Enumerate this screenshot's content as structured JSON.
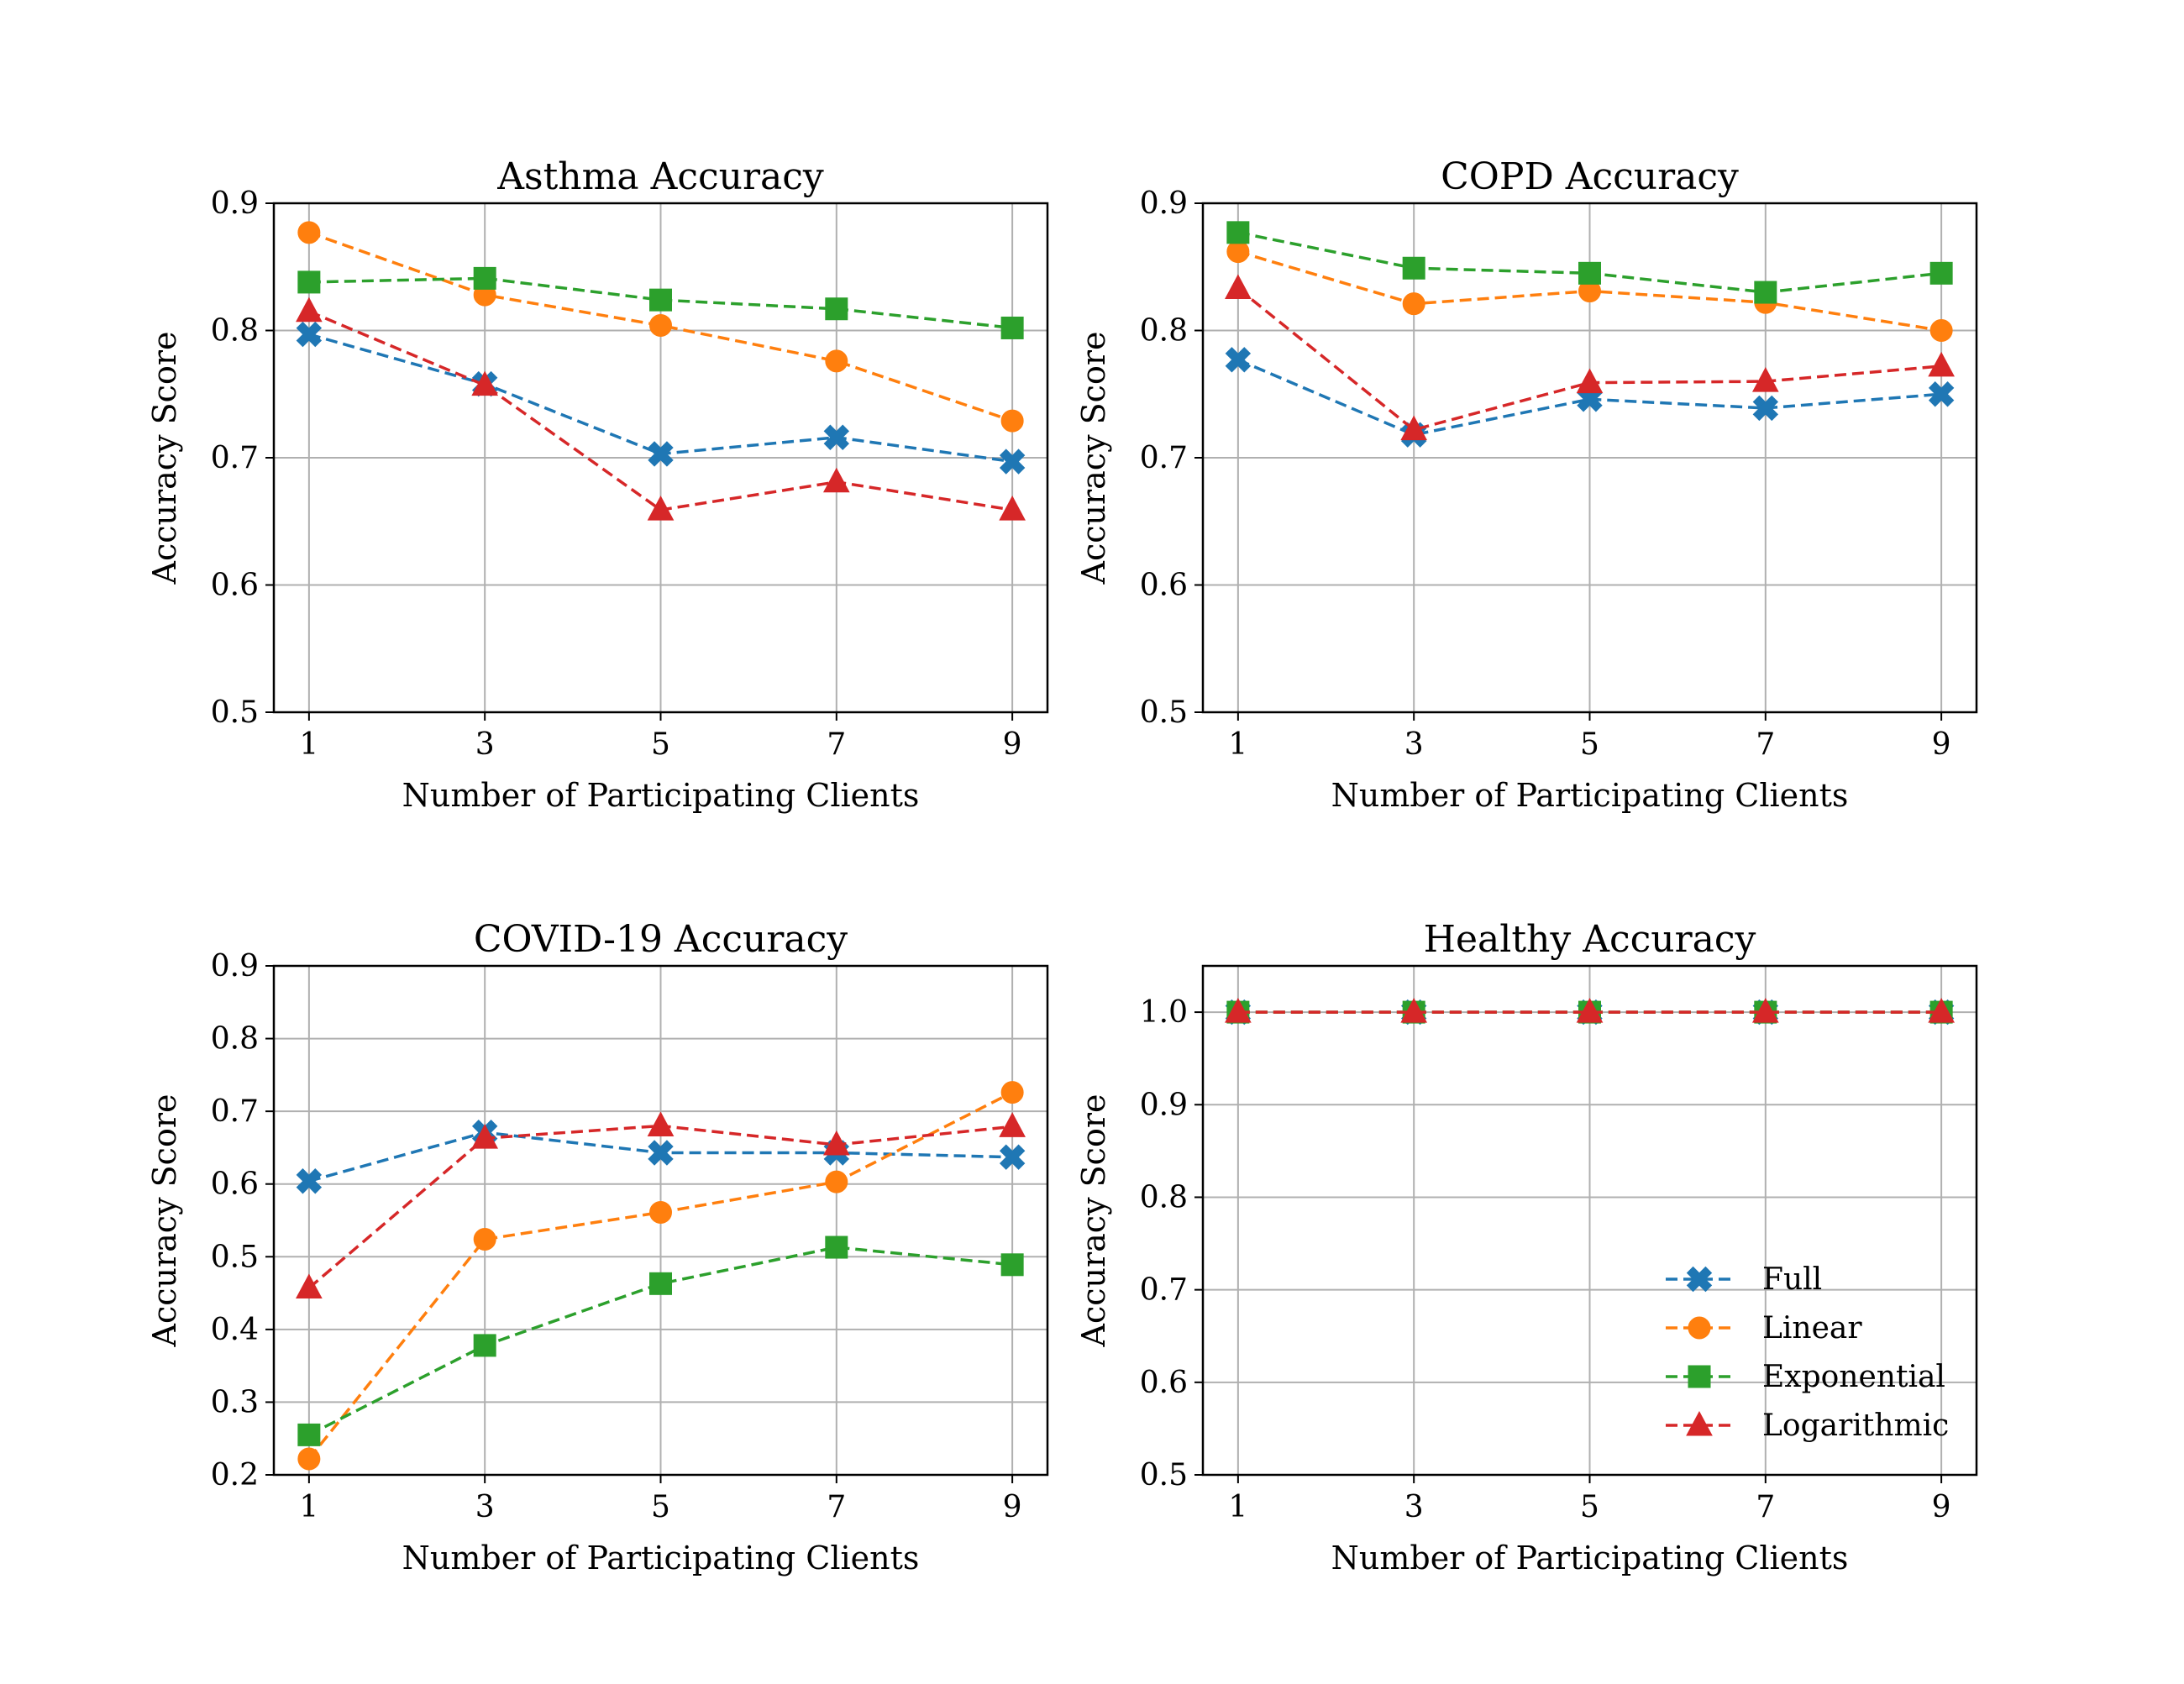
{
  "series_styles": [
    {
      "name": "Full",
      "color": "#1f77b4",
      "marker": "x-filled"
    },
    {
      "name": "Linear",
      "color": "#ff7f0e",
      "marker": "circle"
    },
    {
      "name": "Exponential",
      "color": "#2ca02c",
      "marker": "square"
    },
    {
      "name": "Logarithmic",
      "color": "#d62728",
      "marker": "triangle"
    }
  ],
  "legend": {
    "placement": "lower-right",
    "panel": 3
  },
  "chart_data": [
    {
      "type": "line",
      "title": "Asthma Accuracy",
      "xlabel": "Number of Participating Clients",
      "ylabel": "Accuracy Score",
      "x": [
        1,
        3,
        5,
        7,
        9
      ],
      "xticks": [
        "1",
        "3",
        "5",
        "7",
        "9"
      ],
      "xlim": [
        0.6,
        9.4
      ],
      "ylim": [
        0.5,
        0.9
      ],
      "yticks": [
        "0.5",
        "0.6",
        "0.7",
        "0.8",
        "0.9"
      ],
      "grid": true,
      "series": [
        {
          "name": "Full",
          "values": [
            0.797,
            0.758,
            0.703,
            0.716,
            0.697
          ]
        },
        {
          "name": "Linear",
          "values": [
            0.877,
            0.828,
            0.804,
            0.776,
            0.729
          ]
        },
        {
          "name": "Exponential",
          "values": [
            0.838,
            0.841,
            0.824,
            0.817,
            0.802
          ]
        },
        {
          "name": "Logarithmic",
          "values": [
            0.815,
            0.757,
            0.659,
            0.681,
            0.659
          ]
        }
      ]
    },
    {
      "type": "line",
      "title": "COPD Accuracy",
      "xlabel": "Number of Participating Clients",
      "ylabel": "Accuracy Score",
      "x": [
        1,
        3,
        5,
        7,
        9
      ],
      "xticks": [
        "1",
        "3",
        "5",
        "7",
        "9"
      ],
      "xlim": [
        0.6,
        9.4
      ],
      "ylim": [
        0.5,
        0.9
      ],
      "yticks": [
        "0.5",
        "0.6",
        "0.7",
        "0.8",
        "0.9"
      ],
      "grid": true,
      "series": [
        {
          "name": "Full",
          "values": [
            0.777,
            0.718,
            0.746,
            0.739,
            0.75
          ]
        },
        {
          "name": "Linear",
          "values": [
            0.862,
            0.821,
            0.831,
            0.822,
            0.8
          ]
        },
        {
          "name": "Exponential",
          "values": [
            0.877,
            0.849,
            0.845,
            0.83,
            0.845
          ]
        },
        {
          "name": "Logarithmic",
          "values": [
            0.833,
            0.722,
            0.759,
            0.76,
            0.772
          ]
        }
      ]
    },
    {
      "type": "line",
      "title": "COVID-19 Accuracy",
      "xlabel": "Number of Participating Clients",
      "ylabel": "Accuracy Score",
      "x": [
        1,
        3,
        5,
        7,
        9
      ],
      "xticks": [
        "1",
        "3",
        "5",
        "7",
        "9"
      ],
      "xlim": [
        0.6,
        9.4
      ],
      "ylim": [
        0.2,
        0.9
      ],
      "yticks": [
        "0.2",
        "0.3",
        "0.4",
        "0.5",
        "0.6",
        "0.7",
        "0.8",
        "0.9"
      ],
      "grid": true,
      "series": [
        {
          "name": "Full",
          "values": [
            0.604,
            0.671,
            0.643,
            0.643,
            0.637
          ]
        },
        {
          "name": "Linear",
          "values": [
            0.222,
            0.524,
            0.561,
            0.603,
            0.726
          ]
        },
        {
          "name": "Exponential",
          "values": [
            0.255,
            0.378,
            0.463,
            0.513,
            0.489
          ]
        },
        {
          "name": "Logarithmic",
          "values": [
            0.457,
            0.663,
            0.68,
            0.654,
            0.679
          ]
        }
      ]
    },
    {
      "type": "line",
      "title": "Healthy Accuracy",
      "xlabel": "Number of Participating Clients",
      "ylabel": "Accuracy Score",
      "x": [
        1,
        3,
        5,
        7,
        9
      ],
      "xticks": [
        "1",
        "3",
        "5",
        "7",
        "9"
      ],
      "xlim": [
        0.6,
        9.4
      ],
      "ylim": [
        0.5,
        1.05
      ],
      "yticks": [
        "0.5",
        "0.6",
        "0.7",
        "0.8",
        "0.9",
        "1.0"
      ],
      "grid": true,
      "series": [
        {
          "name": "Full",
          "values": [
            1.0,
            1.0,
            1.0,
            1.0,
            1.0
          ]
        },
        {
          "name": "Linear",
          "values": [
            1.0,
            1.0,
            1.0,
            1.0,
            1.0
          ]
        },
        {
          "name": "Exponential",
          "values": [
            1.0,
            1.0,
            1.0,
            1.0,
            1.0
          ]
        },
        {
          "name": "Logarithmic",
          "values": [
            1.0,
            1.0,
            1.0,
            1.0,
            1.0
          ]
        }
      ]
    }
  ]
}
